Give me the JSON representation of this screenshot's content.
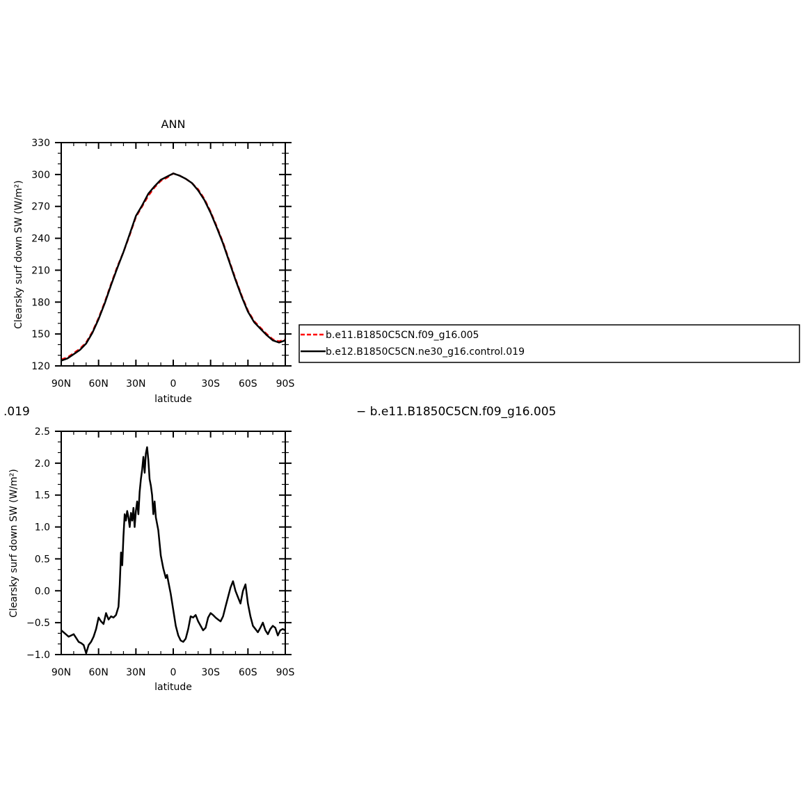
{
  "chart_data": [
    {
      "type": "line",
      "title": "ANN",
      "xlabel": "latitude",
      "ylabel": "Clearsky surf down SW (W/m²)",
      "xlim": [
        90,
        -90
      ],
      "ylim": [
        120,
        330
      ],
      "x_ticks": [
        90,
        60,
        30,
        0,
        -30,
        -60,
        -90
      ],
      "x_tick_labels": [
        "90N",
        "60N",
        "30N",
        "0",
        "30S",
        "60S",
        "90S"
      ],
      "y_ticks": [
        120,
        150,
        180,
        210,
        240,
        270,
        300,
        330
      ],
      "y_tick_labels": [
        "120",
        "150",
        "180",
        "210",
        "240",
        "270",
        "300",
        "330"
      ],
      "x": [
        90,
        85,
        80,
        75,
        70,
        65,
        60,
        55,
        50,
        45,
        40,
        35,
        30,
        25,
        20,
        15,
        10,
        5,
        0,
        -5,
        -10,
        -15,
        -20,
        -25,
        -30,
        -35,
        -40,
        -45,
        -50,
        -55,
        -60,
        -65,
        -70,
        -75,
        -80,
        -85,
        -90
      ],
      "series": [
        {
          "name": "b.e11.B1850C5CN.f09_g16.005",
          "color": "#ff0000",
          "dash": "dashed",
          "values": [
            126,
            128,
            132,
            136,
            142,
            152,
            165,
            180,
            197,
            213,
            227,
            243,
            260,
            270,
            280,
            288,
            294,
            297,
            301,
            299,
            296,
            292,
            286,
            277,
            265,
            251,
            236,
            219,
            202,
            186,
            172,
            162,
            156,
            150,
            145,
            143,
            145
          ]
        },
        {
          "name": "b.e12.B1850C5CN.ne30_g16.control.019",
          "color": "#000000",
          "dash": "solid",
          "values": [
            125,
            127,
            131,
            135,
            141,
            151,
            164,
            179,
            196,
            212,
            227,
            244,
            261,
            271,
            282,
            289,
            295,
            298,
            301,
            299,
            296,
            292,
            285,
            276,
            264,
            250,
            235,
            218,
            201,
            185,
            171,
            161,
            155,
            149,
            144,
            142,
            144
          ]
        }
      ],
      "legend": "right"
    },
    {
      "type": "line",
      "title": "",
      "xlabel": "latitude",
      "ylabel": "Clearsky surf down SW (W/m²)",
      "xlim": [
        90,
        -90
      ],
      "ylim": [
        -1.0,
        2.5
      ],
      "x_ticks": [
        90,
        60,
        30,
        0,
        -30,
        -60,
        -90
      ],
      "x_tick_labels": [
        "90N",
        "60N",
        "30N",
        "0",
        "30S",
        "60S",
        "90S"
      ],
      "y_ticks": [
        -1.0,
        -0.5,
        0.0,
        0.5,
        1.0,
        1.5,
        2.0,
        2.5
      ],
      "y_tick_labels": [
        "−1.0",
        "−0.5",
        "0.0",
        "0.5",
        "1.0",
        "1.5",
        "2.0",
        "2.5"
      ],
      "x": [
        90,
        87,
        84,
        80,
        78,
        76,
        74,
        72,
        70,
        68,
        66,
        64,
        62,
        60,
        58,
        56,
        54,
        52,
        50,
        48,
        46,
        44,
        43,
        42,
        41,
        40,
        39,
        38,
        37,
        36,
        35,
        34,
        33,
        32,
        31,
        30,
        29,
        28,
        27,
        26,
        25,
        24,
        23,
        22,
        21,
        20,
        19,
        18,
        17,
        16,
        15,
        14,
        12,
        10,
        8,
        6,
        5,
        4,
        3,
        2,
        0,
        -2,
        -4,
        -6,
        -8,
        -10,
        -12,
        -14,
        -16,
        -18,
        -20,
        -22,
        -24,
        -26,
        -28,
        -30,
        -32,
        -34,
        -36,
        -38,
        -40,
        -42,
        -44,
        -46,
        -48,
        -50,
        -52,
        -54,
        -56,
        -58,
        -60,
        -62,
        -64,
        -66,
        -68,
        -70,
        -72,
        -74,
        -76,
        -78,
        -80,
        -82,
        -84,
        -86,
        -88,
        -90
      ],
      "series": [
        {
          "name": "",
          "color": "#000000",
          "dash": "solid",
          "values": [
            -0.62,
            -0.67,
            -0.72,
            -0.68,
            -0.74,
            -0.8,
            -0.82,
            -0.85,
            -0.98,
            -0.85,
            -0.8,
            -0.72,
            -0.6,
            -0.42,
            -0.48,
            -0.52,
            -0.35,
            -0.45,
            -0.4,
            -0.42,
            -0.38,
            -0.25,
            0.1,
            0.6,
            0.4,
            0.85,
            1.2,
            1.1,
            1.25,
            1.15,
            1.0,
            1.22,
            1.1,
            1.3,
            1.0,
            1.25,
            1.4,
            1.2,
            1.55,
            1.75,
            1.9,
            2.1,
            1.85,
            2.15,
            2.25,
            2.05,
            1.75,
            1.65,
            1.5,
            1.2,
            1.4,
            1.15,
            0.95,
            0.55,
            0.35,
            0.2,
            0.25,
            0.15,
            0.05,
            -0.05,
            -0.3,
            -0.55,
            -0.7,
            -0.78,
            -0.8,
            -0.75,
            -0.6,
            -0.4,
            -0.42,
            -0.38,
            -0.48,
            -0.55,
            -0.62,
            -0.58,
            -0.42,
            -0.35,
            -0.38,
            -0.42,
            -0.45,
            -0.48,
            -0.4,
            -0.25,
            -0.1,
            0.05,
            0.15,
            0.0,
            -0.1,
            -0.2,
            0.0,
            0.1,
            -0.2,
            -0.4,
            -0.55,
            -0.6,
            -0.65,
            -0.58,
            -0.5,
            -0.62,
            -0.68,
            -0.6,
            -0.55,
            -0.58,
            -0.7,
            -0.62,
            -0.6,
            -0.62
          ]
        }
      ]
    }
  ],
  "stray_text": {
    "left_fragment": ".019",
    "right_fragment": "− b.e11.B1850C5CN.f09_g16.005"
  }
}
